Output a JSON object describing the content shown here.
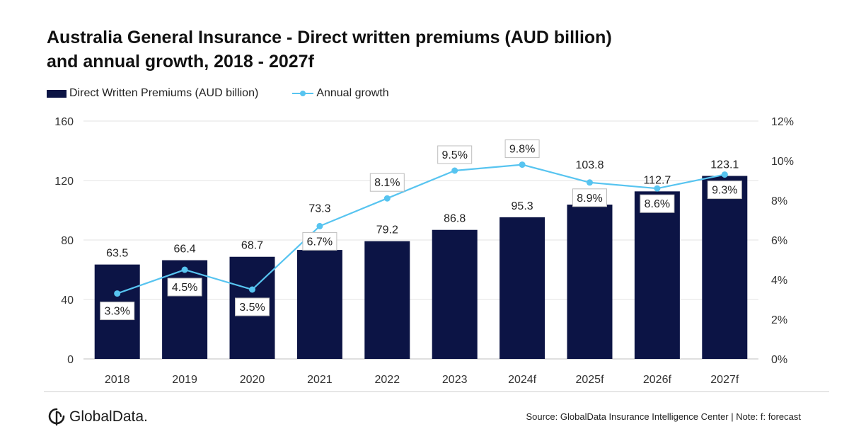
{
  "title_line1": "Australia General Insurance - Direct written premiums (AUD billion)",
  "title_line2": "and annual growth, 2018 - 2027f",
  "legend": {
    "bars": "Direct Written Premiums (AUD billion)",
    "line": "Annual growth"
  },
  "colors": {
    "bars": "#0c1445",
    "line": "#57c4f0"
  },
  "footer": {
    "logo": "GlobalData.",
    "source": "Source: GlobalData Insurance Intelligence Center | Note: f: forecast"
  },
  "chart_data": {
    "type": "bar",
    "categories": [
      "2018",
      "2019",
      "2020",
      "2021",
      "2022",
      "2023",
      "2024f",
      "2025f",
      "2026f",
      "2027f"
    ],
    "series": [
      {
        "name": "Direct Written Premiums (AUD billion)",
        "type": "bar",
        "axis": "left",
        "values": [
          63.5,
          66.4,
          68.7,
          73.3,
          79.2,
          86.8,
          95.3,
          103.8,
          112.7,
          123.1
        ],
        "labels": [
          "63.5",
          "66.4",
          "68.7",
          "73.3",
          "79.2",
          "86.8",
          "95.3",
          "103.8",
          "112.7",
          "123.1"
        ]
      },
      {
        "name": "Annual growth",
        "type": "line",
        "axis": "right",
        "values": [
          3.3,
          4.5,
          3.5,
          6.7,
          8.1,
          9.5,
          9.8,
          8.9,
          8.6,
          9.3
        ],
        "labels": [
          "3.3%",
          "4.5%",
          "3.5%",
          "6.7%",
          "8.1%",
          "9.5%",
          "9.8%",
          "8.9%",
          "8.6%",
          "9.3%"
        ]
      }
    ],
    "y_left": {
      "lim": [
        0,
        160
      ],
      "ticks": [
        "0",
        "40",
        "80",
        "120",
        "160"
      ]
    },
    "y_right": {
      "lim": [
        0,
        12
      ],
      "ticks": [
        "0%",
        "2%",
        "4%",
        "6%",
        "8%",
        "10%",
        "12%"
      ]
    },
    "grid": true,
    "legend_position": "top-left"
  }
}
